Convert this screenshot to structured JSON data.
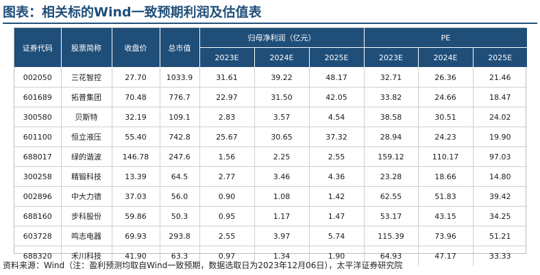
{
  "title": "图表：相关标的Wind一致预期利润及估值表",
  "headers": {
    "code": "证券代码",
    "name": "股票简称",
    "price": "收盘价",
    "mktcap": "总市值",
    "profit_group": "归母净利润（亿元）",
    "pe_group": "PE",
    "years": [
      "2023E",
      "2024E",
      "2025E"
    ]
  },
  "rows": [
    {
      "code": "002050",
      "name": "三花智控",
      "price": "27.70",
      "mktcap": "1033.9",
      "profit": [
        "31.61",
        "39.22",
        "48.17"
      ],
      "pe": [
        "32.71",
        "26.36",
        "21.46"
      ]
    },
    {
      "code": "601689",
      "name": "拓普集团",
      "price": "70.48",
      "mktcap": "776.7",
      "profit": [
        "22.97",
        "31.50",
        "42.05"
      ],
      "pe": [
        "33.82",
        "24.66",
        "18.47"
      ]
    },
    {
      "code": "300580",
      "name": "贝斯特",
      "price": "32.19",
      "mktcap": "109.1",
      "profit": [
        "2.83",
        "3.57",
        "4.54"
      ],
      "pe": [
        "38.58",
        "30.51",
        "24.02"
      ]
    },
    {
      "code": "601100",
      "name": "恒立液压",
      "price": "55.40",
      "mktcap": "742.8",
      "profit": [
        "25.67",
        "30.65",
        "37.32"
      ],
      "pe": [
        "28.94",
        "24.23",
        "19.90"
      ]
    },
    {
      "code": "688017",
      "name": "绿的谐波",
      "price": "146.78",
      "mktcap": "247.6",
      "profit": [
        "1.56",
        "2.25",
        "2.55"
      ],
      "pe": [
        "159.12",
        "110.17",
        "97.03"
      ]
    },
    {
      "code": "300258",
      "name": "精锻科技",
      "price": "13.39",
      "mktcap": "64.5",
      "profit": [
        "2.77",
        "3.46",
        "4.36"
      ],
      "pe": [
        "23.28",
        "18.66",
        "14.80"
      ]
    },
    {
      "code": "002896",
      "name": "中大力德",
      "price": "37.03",
      "mktcap": "56.0",
      "profit": [
        "0.90",
        "1.08",
        "1.42"
      ],
      "pe": [
        "62.55",
        "51.83",
        "39.42"
      ]
    },
    {
      "code": "688160",
      "name": "步科股份",
      "price": "59.86",
      "mktcap": "50.3",
      "profit": [
        "0.95",
        "1.17",
        "1.47"
      ],
      "pe": [
        "53.17",
        "43.15",
        "34.25"
      ]
    },
    {
      "code": "603728",
      "name": "鸣志电器",
      "price": "69.93",
      "mktcap": "293.8",
      "profit": [
        "2.55",
        "3.97",
        "5.74"
      ],
      "pe": [
        "115.39",
        "73.96",
        "51.21"
      ]
    },
    {
      "code": "688320",
      "name": "禾川科技",
      "price": "41.90",
      "mktcap": "63.3",
      "profit": [
        "0.97",
        "1.34",
        "1.90"
      ],
      "pe": [
        "64.93",
        "47.17",
        "33.33"
      ]
    }
  ],
  "footer": "资料来源：Wind（注：盈利预测均取自Wind一致预期，数据选取日为2023年12月06日），太平洋证券研究院",
  "colors": {
    "header_bg": "#1f4e79",
    "title": "#1f4e79"
  }
}
